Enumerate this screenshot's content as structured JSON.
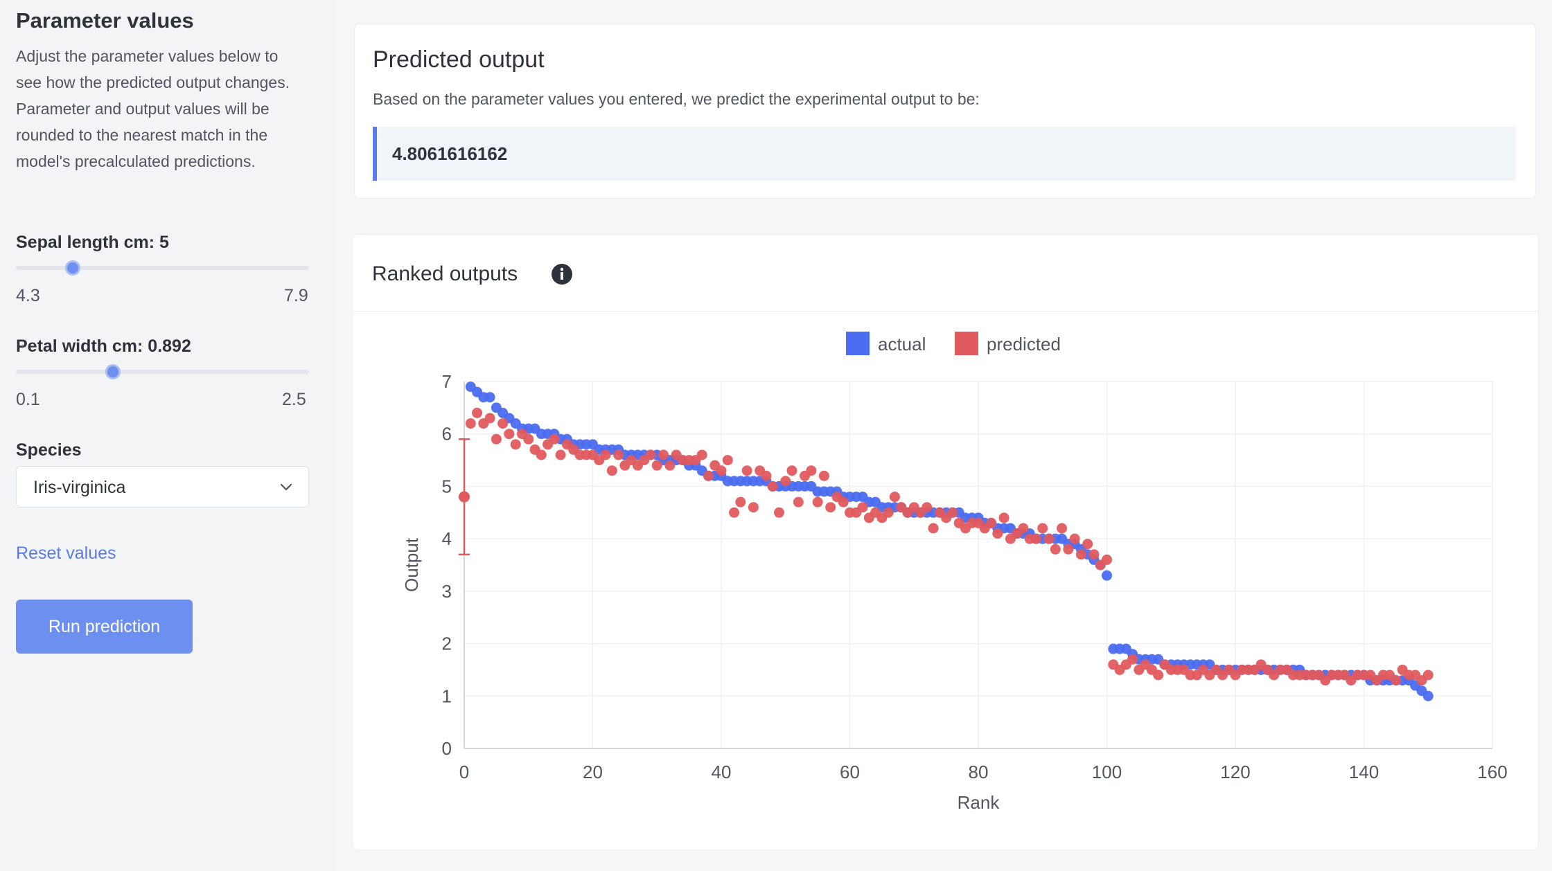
{
  "sidebar": {
    "title": "Parameter values",
    "description": "Adjust the parameter values below to see how the predicted output changes. Parameter and output values will be rounded to the nearest match in the model's precalculated predictions.",
    "sepal": {
      "label": "Sepal length cm: 5",
      "min": "4.3",
      "max": "7.9",
      "value": 5,
      "range": [
        4.3,
        7.9
      ]
    },
    "petal": {
      "label": "Petal width cm: 0.892",
      "min": "0.1",
      "max": "2.5",
      "value": 0.892,
      "range": [
        0.1,
        2.5
      ]
    },
    "species": {
      "label": "Species",
      "value": "Iris-virginica",
      "icon": "chevron-down-icon"
    },
    "reset_label": "Reset values",
    "run_label": "Run prediction"
  },
  "prediction": {
    "title": "Predicted output",
    "subtitle": "Based on the parameter values you entered, we predict the experimental output to be:",
    "value": "4.8061616162"
  },
  "chart_section": {
    "title": "Ranked outputs",
    "info_icon": "info-icon"
  },
  "chart_data": {
    "type": "scatter",
    "xlabel": "Rank",
    "ylabel": "Output",
    "xlim": [
      0,
      160
    ],
    "ylim": [
      0,
      7
    ],
    "xticks": [
      "0",
      "20",
      "40",
      "60",
      "80",
      "100",
      "120",
      "140",
      "160"
    ],
    "yticks": [
      "0",
      "1",
      "2",
      "3",
      "4",
      "5",
      "6",
      "7"
    ],
    "grid": true,
    "legend_position": "top-center",
    "colors": {
      "actual": "#4a6cf0",
      "predicted": "#e05a5e"
    },
    "series": [
      {
        "name": "actual",
        "x": [
          1,
          2,
          3,
          4,
          5,
          6,
          7,
          8,
          9,
          10,
          11,
          12,
          13,
          14,
          15,
          16,
          17,
          18,
          19,
          20,
          21,
          22,
          23,
          24,
          25,
          26,
          27,
          28,
          29,
          30,
          31,
          32,
          33,
          34,
          35,
          36,
          37,
          38,
          39,
          40,
          41,
          42,
          43,
          44,
          45,
          46,
          47,
          48,
          49,
          50,
          51,
          52,
          53,
          54,
          55,
          56,
          57,
          58,
          59,
          60,
          61,
          62,
          63,
          64,
          65,
          66,
          67,
          68,
          69,
          70,
          71,
          72,
          73,
          74,
          75,
          76,
          77,
          78,
          79,
          80,
          81,
          82,
          83,
          84,
          85,
          86,
          87,
          88,
          89,
          90,
          91,
          92,
          93,
          94,
          95,
          96,
          97,
          98,
          99,
          100,
          101,
          102,
          103,
          104,
          105,
          106,
          107,
          108,
          109,
          110,
          111,
          112,
          113,
          114,
          115,
          116,
          117,
          118,
          119,
          120,
          121,
          122,
          123,
          124,
          125,
          126,
          127,
          128,
          129,
          130,
          131,
          132,
          133,
          134,
          135,
          136,
          137,
          138,
          139,
          140,
          141,
          142,
          143,
          144,
          145,
          146,
          147,
          148,
          149,
          150
        ],
        "y": [
          6.9,
          6.8,
          6.7,
          6.7,
          6.5,
          6.4,
          6.3,
          6.2,
          6.1,
          6.1,
          6.1,
          6.0,
          6.0,
          6.0,
          5.9,
          5.9,
          5.8,
          5.8,
          5.8,
          5.8,
          5.7,
          5.7,
          5.7,
          5.7,
          5.6,
          5.6,
          5.6,
          5.6,
          5.6,
          5.6,
          5.5,
          5.5,
          5.5,
          5.5,
          5.4,
          5.4,
          5.3,
          5.2,
          5.2,
          5.2,
          5.1,
          5.1,
          5.1,
          5.1,
          5.1,
          5.1,
          5.1,
          5.0,
          5.0,
          5.0,
          5.0,
          5.0,
          5.0,
          5.0,
          4.9,
          4.9,
          4.9,
          4.9,
          4.8,
          4.8,
          4.8,
          4.8,
          4.7,
          4.7,
          4.6,
          4.6,
          4.6,
          4.6,
          4.5,
          4.5,
          4.5,
          4.5,
          4.5,
          4.5,
          4.5,
          4.5,
          4.5,
          4.4,
          4.4,
          4.4,
          4.3,
          4.3,
          4.2,
          4.2,
          4.2,
          4.1,
          4.1,
          4.1,
          4.0,
          4.0,
          4.0,
          4.0,
          4.0,
          3.9,
          3.9,
          3.8,
          3.7,
          3.6,
          3.5,
          3.3,
          1.9,
          1.9,
          1.9,
          1.8,
          1.7,
          1.7,
          1.7,
          1.7,
          1.6,
          1.6,
          1.6,
          1.6,
          1.6,
          1.6,
          1.6,
          1.6,
          1.5,
          1.5,
          1.5,
          1.5,
          1.5,
          1.5,
          1.5,
          1.5,
          1.5,
          1.5,
          1.5,
          1.5,
          1.5,
          1.5,
          1.4,
          1.4,
          1.4,
          1.4,
          1.4,
          1.4,
          1.4,
          1.4,
          1.4,
          1.4,
          1.3,
          1.3,
          1.3,
          1.3,
          1.3,
          1.3,
          1.3,
          1.2,
          1.1,
          1.0
        ]
      },
      {
        "name": "predicted",
        "x": [
          1,
          2,
          3,
          4,
          5,
          6,
          7,
          8,
          9,
          10,
          11,
          12,
          13,
          14,
          15,
          16,
          17,
          18,
          19,
          20,
          21,
          22,
          23,
          24,
          25,
          26,
          27,
          28,
          29,
          30,
          31,
          32,
          33,
          34,
          35,
          36,
          37,
          38,
          39,
          40,
          41,
          42,
          43,
          44,
          45,
          46,
          47,
          48,
          49,
          50,
          51,
          52,
          53,
          54,
          55,
          56,
          57,
          58,
          59,
          60,
          61,
          62,
          63,
          64,
          65,
          66,
          67,
          68,
          69,
          70,
          71,
          72,
          73,
          74,
          75,
          76,
          77,
          78,
          79,
          80,
          81,
          82,
          83,
          84,
          85,
          86,
          87,
          88,
          89,
          90,
          91,
          92,
          93,
          94,
          95,
          96,
          97,
          98,
          99,
          100,
          101,
          102,
          103,
          104,
          105,
          106,
          107,
          108,
          109,
          110,
          111,
          112,
          113,
          114,
          115,
          116,
          117,
          118,
          119,
          120,
          121,
          122,
          123,
          124,
          125,
          126,
          127,
          128,
          129,
          130,
          131,
          132,
          133,
          134,
          135,
          136,
          137,
          138,
          139,
          140,
          141,
          142,
          143,
          144,
          145,
          146,
          147,
          148,
          149,
          150
        ],
        "y": [
          6.2,
          6.4,
          6.2,
          6.3,
          5.9,
          6.2,
          6.0,
          5.8,
          6.0,
          5.9,
          5.7,
          5.6,
          5.8,
          5.9,
          5.6,
          5.8,
          5.7,
          5.6,
          5.6,
          5.6,
          5.5,
          5.6,
          5.3,
          5.6,
          5.4,
          5.5,
          5.4,
          5.5,
          5.6,
          5.4,
          5.6,
          5.4,
          5.6,
          5.5,
          5.5,
          5.5,
          5.6,
          5.2,
          5.4,
          5.3,
          5.5,
          4.5,
          4.7,
          5.3,
          4.6,
          5.3,
          5.2,
          5.0,
          4.5,
          5.1,
          5.3,
          4.7,
          5.2,
          5.3,
          4.7,
          5.2,
          4.6,
          4.8,
          4.7,
          4.5,
          4.5,
          4.6,
          4.4,
          4.5,
          4.4,
          4.5,
          4.8,
          4.6,
          4.5,
          4.6,
          4.5,
          4.6,
          4.2,
          4.5,
          4.4,
          4.5,
          4.3,
          4.2,
          4.3,
          4.3,
          4.2,
          4.3,
          4.1,
          4.4,
          4.0,
          4.1,
          4.2,
          4.0,
          4.0,
          4.2,
          4.0,
          3.8,
          4.2,
          3.8,
          4.0,
          3.7,
          3.9,
          3.7,
          3.5,
          3.6,
          1.6,
          1.5,
          1.6,
          1.7,
          1.5,
          1.6,
          1.5,
          1.4,
          1.6,
          1.5,
          1.5,
          1.5,
          1.4,
          1.4,
          1.5,
          1.4,
          1.5,
          1.4,
          1.5,
          1.4,
          1.5,
          1.5,
          1.5,
          1.6,
          1.5,
          1.4,
          1.5,
          1.5,
          1.4,
          1.4,
          1.4,
          1.4,
          1.4,
          1.3,
          1.4,
          1.4,
          1.4,
          1.3,
          1.4,
          1.4,
          1.4,
          1.3,
          1.4,
          1.4,
          1.3,
          1.5,
          1.4,
          1.4,
          1.3,
          1.4
        ],
        "error_bar": {
          "x": 0,
          "y": 4.8,
          "low": 3.7,
          "high": 5.9
        }
      }
    ]
  }
}
